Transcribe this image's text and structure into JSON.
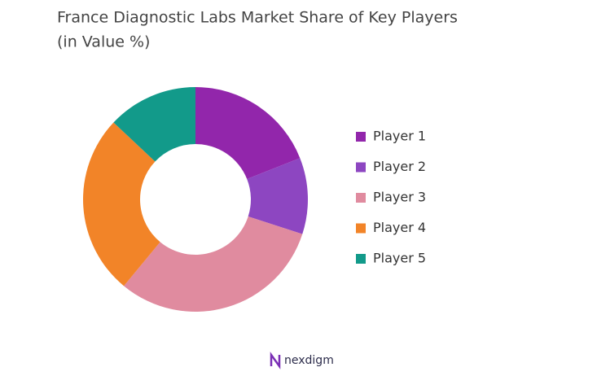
{
  "chart_data": {
    "type": "donut",
    "title": "France Diagnostic Labs Market Share of Key Players",
    "subtitle": "(in Value %)",
    "categories": [
      "Player 1",
      "Player 2",
      "Player 3",
      "Player 4",
      "Player 5"
    ],
    "values": [
      19,
      11,
      31,
      26,
      13
    ],
    "colors": [
      "#9226ab",
      "#8d46c1",
      "#e08b9f",
      "#f28428",
      "#129a8a"
    ],
    "legend": "right"
  },
  "footer": {
    "brand": "nexdigm"
  }
}
